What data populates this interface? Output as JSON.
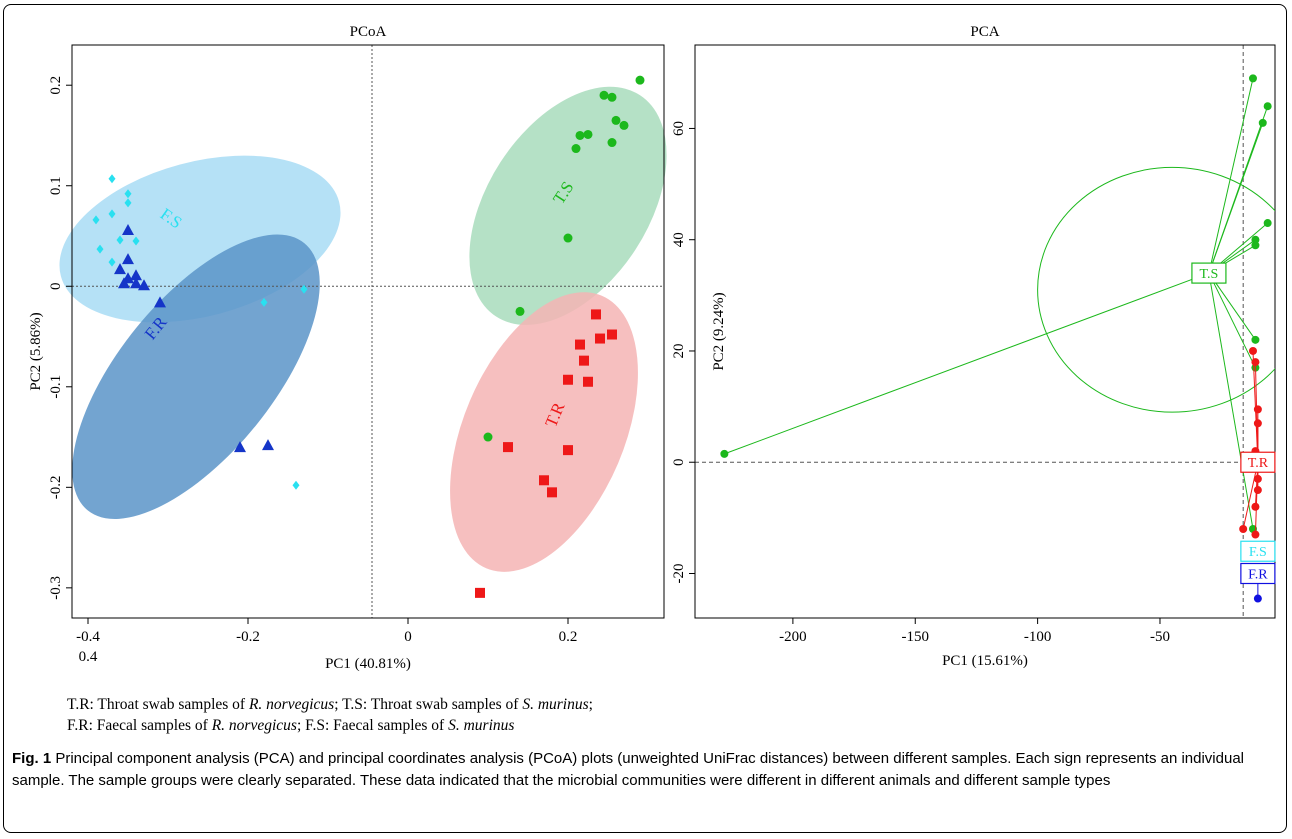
{
  "chart_data": [
    {
      "type": "scatter",
      "title": "PCoA",
      "xlabel": "PC1 (40.81%)",
      "ylabel": "PC2 (5.86%)",
      "xlim": [
        -0.42,
        0.32
      ],
      "ylim": [
        -0.33,
        0.24
      ],
      "x_ticks": [
        "-0.4",
        "-0.2",
        "0",
        "0.2"
      ],
      "x_tick_values": [
        -0.4,
        -0.2,
        0,
        0.2
      ],
      "x_tick_extra": "0.4",
      "y_ticks": [
        "0.2",
        "0.1",
        "0",
        "-0.1",
        "-0.2",
        "-0.3"
      ],
      "y_tick_values": [
        0.2,
        0.1,
        0,
        -0.1,
        -0.2,
        -0.3
      ],
      "reference_lines": {
        "x": -0.045,
        "y": 0
      },
      "groups": [
        {
          "name": "F.S",
          "color": "#29e0f0",
          "ellipse_color": "#a8dcf5",
          "marker": "diamond",
          "ellipse": {
            "cx": -0.26,
            "cy": 0.047,
            "rx": 0.18,
            "ry": 0.048,
            "angle": -15
          },
          "label_pos": [
            -0.3,
            0.063
          ],
          "points": [
            [
              -0.37,
              0.107
            ],
            [
              -0.35,
              0.092
            ],
            [
              -0.35,
              0.083
            ],
            [
              -0.37,
              0.072
            ],
            [
              -0.39,
              0.066
            ],
            [
              -0.385,
              0.037
            ],
            [
              -0.36,
              0.046
            ],
            [
              -0.34,
              0.045
            ],
            [
              -0.37,
              0.024
            ],
            [
              -0.18,
              -0.016
            ],
            [
              -0.13,
              -0.003
            ],
            [
              -0.14,
              -0.198
            ]
          ]
        },
        {
          "name": "F.R",
          "color": "#1535c8",
          "ellipse_color": "#5b94c8",
          "marker": "triangle",
          "ellipse": {
            "cx": -0.265,
            "cy": -0.09,
            "rx": 0.215,
            "ry": 0.048,
            "angle": -51
          },
          "label_pos": [
            -0.31,
            -0.045
          ],
          "points": [
            [
              -0.35,
              0.056
            ],
            [
              -0.35,
              0.027
            ],
            [
              -0.36,
              0.017
            ],
            [
              -0.34,
              0.011
            ],
            [
              -0.35,
              0.008
            ],
            [
              -0.355,
              0.003
            ],
            [
              -0.34,
              0.003
            ],
            [
              -0.33,
              0.001
            ],
            [
              -0.31,
              -0.016
            ],
            [
              -0.21,
              -0.16
            ],
            [
              -0.175,
              -0.158
            ]
          ]
        },
        {
          "name": "T.S",
          "color": "#1cb81c",
          "ellipse_color": "#a8dcbc",
          "marker": "circle",
          "ellipse": {
            "cx": 0.2,
            "cy": 0.08,
            "rx": 0.165,
            "ry": 0.05,
            "angle": -57
          },
          "label_pos": [
            0.2,
            0.09
          ],
          "points": [
            [
              0.29,
              0.205
            ],
            [
              0.245,
              0.19
            ],
            [
              0.255,
              0.188
            ],
            [
              0.26,
              0.165
            ],
            [
              0.27,
              0.16
            ],
            [
              0.215,
              0.15
            ],
            [
              0.225,
              0.151
            ],
            [
              0.255,
              0.143
            ],
            [
              0.21,
              0.137
            ],
            [
              0.2,
              0.048
            ],
            [
              0.14,
              -0.025
            ],
            [
              0.1,
              -0.15
            ]
          ]
        },
        {
          "name": "T.R",
          "color": "#ee1818",
          "ellipse_color": "#f5b4b4",
          "marker": "square",
          "ellipse": {
            "cx": 0.17,
            "cy": -0.145,
            "rx": 0.185,
            "ry": 0.05,
            "angle": -67
          },
          "label_pos": [
            0.19,
            -0.13
          ],
          "points": [
            [
              0.235,
              -0.028
            ],
            [
              0.215,
              -0.058
            ],
            [
              0.24,
              -0.052
            ],
            [
              0.255,
              -0.048
            ],
            [
              0.22,
              -0.074
            ],
            [
              0.2,
              -0.093
            ],
            [
              0.225,
              -0.095
            ],
            [
              0.2,
              -0.163
            ],
            [
              0.125,
              -0.16
            ],
            [
              0.17,
              -0.193
            ],
            [
              0.18,
              -0.205
            ],
            [
              0.09,
              -0.305
            ]
          ]
        }
      ]
    },
    {
      "type": "scatter",
      "title": "PCA",
      "xlabel": "PC1 (15.61%)",
      "ylabel": "PC2 (9.24%)",
      "xlim": [
        -240,
        -3
      ],
      "ylim": [
        -28,
        75
      ],
      "x_ticks": [
        "-200",
        "-150",
        "-100",
        "-50"
      ],
      "x_tick_values": [
        -200,
        -150,
        -100,
        -50
      ],
      "y_ticks": [
        "60",
        "40",
        "20",
        "0",
        "-20"
      ],
      "y_tick_values": [
        60,
        40,
        20,
        0,
        -20
      ],
      "reference_lines": {
        "x": -16,
        "y": 0
      },
      "groups": [
        {
          "name": "T.S",
          "color": "#1cb81c",
          "marker": "circle",
          "centroid": [
            -30,
            34
          ],
          "ellipse": {
            "cx": -45,
            "cy": 31,
            "rx": 55,
            "ry": 22
          },
          "points": [
            [
              -12,
              69
            ],
            [
              -6,
              64
            ],
            [
              -8,
              61
            ],
            [
              -6,
              43
            ],
            [
              -11,
              40
            ],
            [
              -11,
              39
            ],
            [
              -228,
              1.5
            ],
            [
              -11,
              22
            ],
            [
              -11,
              17
            ],
            [
              -12,
              -12
            ]
          ]
        },
        {
          "name": "T.R",
          "color": "#ee1818",
          "marker": "circle",
          "centroid": [
            -10,
            0
          ],
          "points": [
            [
              -12,
              20
            ],
            [
              -11,
              18
            ],
            [
              -10,
              9.5
            ],
            [
              -10,
              7
            ],
            [
              -11,
              2
            ],
            [
              -11,
              -1
            ],
            [
              -10,
              -3
            ],
            [
              -10,
              -5
            ],
            [
              -11,
              -8
            ],
            [
              -16,
              -12
            ],
            [
              -11,
              -13
            ]
          ]
        },
        {
          "name": "F.S",
          "color": "#29e0f0",
          "marker": "circle",
          "centroid": [
            -10,
            -16
          ],
          "points": [
            [
              -11,
              -16
            ]
          ]
        },
        {
          "name": "F.R",
          "color": "#1010e0",
          "marker": "circle",
          "centroid": [
            -10,
            -20
          ],
          "points": [
            [
              -10,
              -24.5
            ]
          ]
        }
      ]
    }
  ],
  "legend": {
    "line1_a_prefix": "T.R: Throat swab samples of ",
    "line1_a_species": "R. norvegicus",
    "line1_b_prefix": ";  T.S: Throat swab samples of ",
    "line1_b_species": "S. murinus",
    "line1_end": ";",
    "line2_a_prefix": "F.R: Faecal samples of ",
    "line2_a_species": "R. norvegicus",
    "line2_b_prefix": ";  F.S: Faecal samples of ",
    "line2_b_species": "S. murinus"
  },
  "caption": {
    "label": "Fig. 1",
    "text": " Principal component analysis (PCA) and principal coordinates analysis (PCoA) plots (unweighted UniFrac distances) between different samples. Each sign represents an individual sample. The sample groups were clearly separated. These data indicated that the microbial communities were different in different animals and different sample types"
  }
}
